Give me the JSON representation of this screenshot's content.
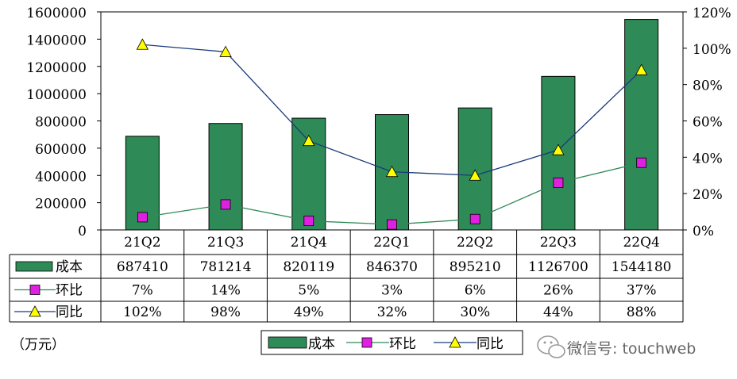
{
  "chart_data": {
    "type": "bar",
    "categories": [
      "21Q2",
      "21Q3",
      "21Q4",
      "22Q1",
      "22Q2",
      "22Q3",
      "22Q4"
    ],
    "unit_label": "（万元）",
    "left_axis": {
      "ylim": [
        0,
        1600000
      ],
      "ticks": [
        "0",
        "200000",
        "400000",
        "600000",
        "800000",
        "1000000",
        "1200000",
        "1400000",
        "1600000"
      ]
    },
    "right_axis": {
      "ylim": [
        0,
        120
      ],
      "ticks": [
        "0%",
        "20%",
        "40%",
        "60%",
        "80%",
        "100%",
        "120%"
      ]
    },
    "series": [
      {
        "name": "成本",
        "kind": "bar",
        "axis": "left",
        "color": "#2e8b57",
        "values": [
          687410,
          781214,
          820119,
          846370,
          895210,
          1126700,
          1544180
        ],
        "labels": [
          "687410",
          "781214",
          "820119",
          "846370",
          "895210",
          "1126700",
          "1544180"
        ]
      },
      {
        "name": "环比",
        "kind": "line",
        "axis": "right",
        "color": "#2e8b57",
        "marker_color": "#e020e0",
        "values": [
          7,
          14,
          5,
          3,
          6,
          26,
          37
        ],
        "labels": [
          "7%",
          "14%",
          "5%",
          "3%",
          "6%",
          "26%",
          "37%"
        ]
      },
      {
        "name": "同比",
        "kind": "line",
        "axis": "right",
        "color": "#1a3a7a",
        "marker_color": "#ffff00",
        "values": [
          102,
          98,
          49,
          32,
          30,
          44,
          88
        ],
        "labels": [
          "102%",
          "98%",
          "49%",
          "32%",
          "30%",
          "44%",
          "88%"
        ]
      }
    ],
    "legend_position": "bottom",
    "grid": false
  },
  "watermark": "微信号: touchweb"
}
